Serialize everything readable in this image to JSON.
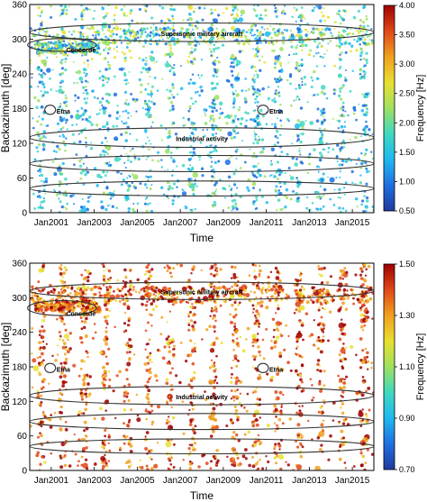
{
  "chart_data": [
    {
      "type": "scatter",
      "xlabel": "Time",
      "ylabel": "Backazimuth [deg]",
      "colorbar_label": "Frequency [Hz]",
      "colorbar_range": [
        0.5,
        4.0
      ],
      "colorbar_ticks": [
        "0.50",
        "1.00",
        "1.50",
        "2.00",
        "2.50",
        "3.00",
        "3.50",
        "4.00"
      ],
      "xlim": [
        2000.0,
        2016.0
      ],
      "ylim": [
        0,
        360
      ],
      "x_ticks": [
        "Jan2001",
        "Jan2003",
        "Jan2005",
        "Jan2007",
        "Jan2009",
        "Jan2011",
        "Jan2013",
        "Jan2015"
      ],
      "y_ticks": [
        "0",
        "60",
        "120",
        "180",
        "240",
        "300",
        "360"
      ],
      "annotations": [
        {
          "label": "Supersonic military aircraft",
          "cx": 2008.0,
          "cy": 312,
          "rx": 8.0,
          "ry": 16,
          "shape": "ellipse"
        },
        {
          "label": "Concorde",
          "cx": 2001.5,
          "cy": 290,
          "rx": 1.6,
          "ry": 11,
          "shape": "ellipse"
        },
        {
          "label": "Industrial activity",
          "cx": 2008.0,
          "cy": 130,
          "rx": 8.0,
          "ry": 17,
          "shape": "ellipse"
        },
        {
          "label": "",
          "cx": 2008.0,
          "cy": 85,
          "rx": 8.0,
          "ry": 14,
          "shape": "ellipse"
        },
        {
          "label": "",
          "cx": 2008.0,
          "cy": 42,
          "rx": 8.0,
          "ry": 13,
          "shape": "ellipse"
        },
        {
          "label": "Etna",
          "cx": 2000.95,
          "cy": 178,
          "rx": 0.25,
          "ry": 8,
          "shape": "circle"
        },
        {
          "label": "Etna",
          "cx": 2010.85,
          "cy": 178,
          "rx": 0.25,
          "ry": 8,
          "shape": "circle"
        }
      ],
      "colormap": [
        "#1f3a9e",
        "#1f6fe0",
        "#1fb8f0",
        "#3fd8c0",
        "#9fe060",
        "#e8e030",
        "#f0a020",
        "#e04818",
        "#a00000"
      ]
    },
    {
      "type": "scatter",
      "xlabel": "Time",
      "ylabel": "Backazimuth [deg]",
      "colorbar_label": "Frequency [Hz]",
      "colorbar_range": [
        0.7,
        1.5
      ],
      "colorbar_ticks": [
        "0.70",
        "0.90",
        "1.10",
        "1.30",
        "1.50"
      ],
      "xlim": [
        2000.0,
        2016.0
      ],
      "ylim": [
        0,
        360
      ],
      "x_ticks": [
        "Jan2001",
        "Jan2003",
        "Jan2005",
        "Jan2007",
        "Jan2009",
        "Jan2011",
        "Jan2013",
        "Jan2015"
      ],
      "y_ticks": [
        "0",
        "60",
        "120",
        "180",
        "240",
        "300",
        "360"
      ],
      "annotations": [
        {
          "label": "Supersonic military aircraft",
          "cx": 2008.0,
          "cy": 312,
          "rx": 8.0,
          "ry": 15,
          "shape": "ellipse"
        },
        {
          "label": "Concorde",
          "cx": 2001.5,
          "cy": 282,
          "rx": 1.6,
          "ry": 13,
          "shape": "ellipse"
        },
        {
          "label": "Industrial activity",
          "cx": 2008.0,
          "cy": 130,
          "rx": 8.0,
          "ry": 16,
          "shape": "ellipse"
        },
        {
          "label": "",
          "cx": 2008.0,
          "cy": 85,
          "rx": 8.0,
          "ry": 14,
          "shape": "ellipse"
        },
        {
          "label": "",
          "cx": 2008.0,
          "cy": 42,
          "rx": 8.0,
          "ry": 13,
          "shape": "ellipse"
        },
        {
          "label": "Etna",
          "cx": 2000.95,
          "cy": 178,
          "rx": 0.25,
          "ry": 8,
          "shape": "circle"
        },
        {
          "label": "Etna",
          "cx": 2010.85,
          "cy": 178,
          "rx": 0.25,
          "ry": 8,
          "shape": "circle"
        }
      ],
      "colormap": [
        "#1f3a9e",
        "#1f6fe0",
        "#1fb8f0",
        "#3fd8c0",
        "#9fe060",
        "#e8e030",
        "#f0a020",
        "#e04818",
        "#a00000"
      ]
    }
  ]
}
